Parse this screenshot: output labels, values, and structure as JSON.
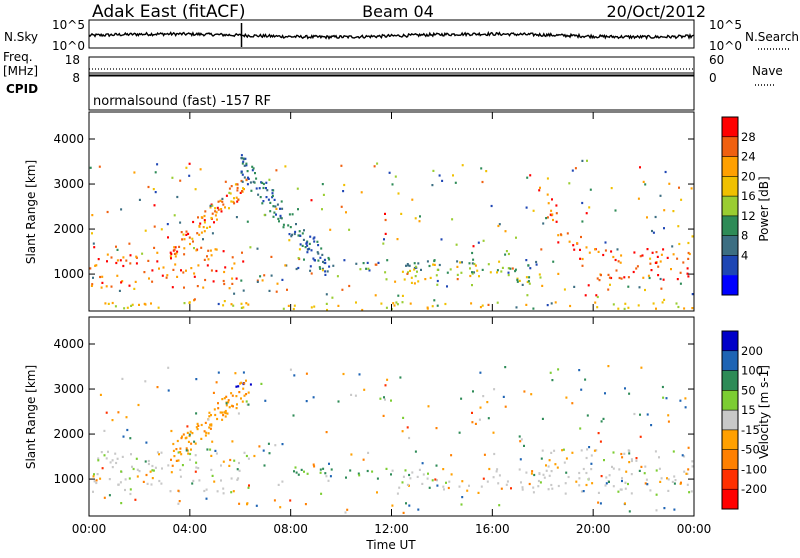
{
  "header": {
    "station": "Adak East (fitACF)",
    "beam": "Beam 04",
    "date": "20/Oct/2012"
  },
  "noise_panel": {
    "left_label": "N.Sky",
    "right_label": "N.Search",
    "left_ticks": [
      "10^5",
      "10^0"
    ],
    "right_ticks": [
      "10^5",
      "10^0"
    ]
  },
  "freq_panel": {
    "left_label_line1": "Freq.",
    "left_label_line2": "[MHz]",
    "left_ticks": [
      "18",
      "8"
    ],
    "right_label": "Nave",
    "right_ticks": [
      "60",
      "0"
    ]
  },
  "cpid_panel": {
    "label": "CPID",
    "text": "normalsound (fast) -157 RF"
  },
  "x_axis": {
    "label": "Time UT",
    "ticks": [
      "00:00",
      "04:00",
      "08:00",
      "12:00",
      "16:00",
      "20:00",
      "00:00"
    ]
  },
  "chart_data": [
    {
      "type": "heatmap",
      "panel": "power",
      "xlabel": "Time UT",
      "ylabel": "Slant Range [km]",
      "y_ticks": [
        1000,
        2000,
        3000,
        4000
      ],
      "ylim": [
        180,
        4600
      ],
      "xlim_hours": [
        0,
        24
      ],
      "colorbar": {
        "label": "Power [dB]",
        "ticks": [
          "28",
          "24",
          "20",
          "16",
          "12",
          "8",
          "4"
        ],
        "colors": [
          "#ff0000",
          "#f06010",
          "#ffa000",
          "#f0c000",
          "#9acd32",
          "#2e8b57",
          "#3c6e82",
          "#1e46b4",
          "#0000ff"
        ]
      },
      "features": [
        {
          "name": "evening-band-strong",
          "start_hr": 0.0,
          "end_hr": 6.3,
          "range_km": [
            700,
            1650
          ],
          "db": 26
        },
        {
          "name": "tilt-band",
          "start_hr": 3.2,
          "end_hr": 6.3,
          "range_km": [
            1400,
            3300
          ],
          "db": 24
        },
        {
          "name": "night-diffuse",
          "start_hr": 6.0,
          "end_hr": 9.5,
          "range_km": [
            1000,
            3500
          ],
          "db": 6
        },
        {
          "name": "night-band-1200",
          "start_hr": 8.0,
          "end_hr": 18.0,
          "range_km": [
            1050,
            1350
          ],
          "db": 7
        },
        {
          "name": "morning-band",
          "start_hr": 12.0,
          "end_hr": 18.0,
          "range_km": [
            700,
            1300
          ],
          "db": 16
        },
        {
          "name": "dawn-rise",
          "start_hr": 17.8,
          "end_hr": 24.0,
          "range_km": [
            700,
            1700
          ],
          "db": 26
        },
        {
          "name": "near-range-clutter",
          "start_hr": 0.0,
          "end_hr": 24.0,
          "range_km": [
            200,
            400
          ],
          "db": 18
        }
      ]
    },
    {
      "type": "heatmap",
      "panel": "velocity",
      "xlabel": "Time UT",
      "ylabel": "Slant Range [km]",
      "y_ticks": [
        1000,
        2000,
        3000,
        4000
      ],
      "ylim": [
        180,
        4600
      ],
      "xlim_hours": [
        0,
        24
      ],
      "colorbar": {
        "label": "Velocity [m s-1]",
        "ticks": [
          "200",
          "100",
          "50",
          "15",
          "-15",
          "-50",
          "-100",
          "-200"
        ],
        "colors": [
          "#0000c8",
          "#1e64b4",
          "#2e8b57",
          "#7ccd32",
          "#c8c8c8",
          "#ffa000",
          "#ff8000",
          "#ff3000",
          "#ff0000"
        ]
      },
      "features": [
        {
          "name": "ground-scatter-evening",
          "start_hr": 0.0,
          "end_hr": 6.3,
          "range_km": [
            700,
            1650
          ],
          "vel": 0
        },
        {
          "name": "tilt-band",
          "start_hr": 3.2,
          "end_hr": 6.3,
          "range_km": [
            1400,
            3300
          ],
          "vel": -40
        },
        {
          "name": "blue-patch",
          "start_hr": 5.6,
          "end_hr": 6.4,
          "range_km": [
            2800,
            3200
          ],
          "vel": 200
        },
        {
          "name": "night-band",
          "start_hr": 8.0,
          "end_hr": 12.0,
          "range_km": [
            1100,
            1350
          ],
          "vel": 40
        },
        {
          "name": "morning-gray",
          "start_hr": 12.0,
          "end_hr": 18.0,
          "range_km": [
            700,
            1250
          ],
          "vel": 0
        },
        {
          "name": "ground-scatter-dawn",
          "start_hr": 17.8,
          "end_hr": 24.0,
          "range_km": [
            700,
            1700
          ],
          "vel": 0
        }
      ]
    }
  ]
}
